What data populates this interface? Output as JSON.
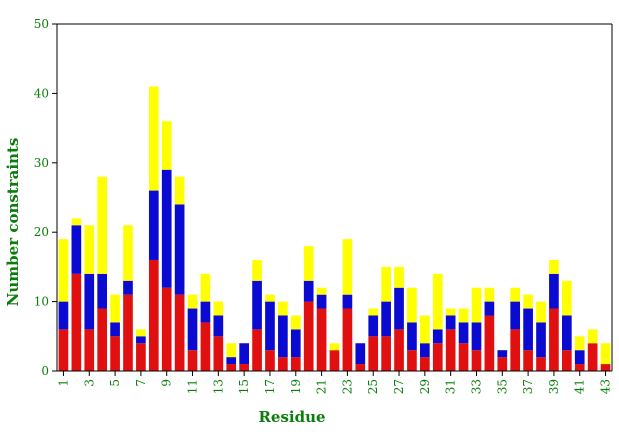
{
  "chart_data": {
    "type": "bar",
    "stacked": true,
    "title": "",
    "xlabel": "Residue",
    "ylabel": "Number constraints",
    "ylim": [
      0,
      50
    ],
    "yticks": [
      0,
      10,
      20,
      30,
      40,
      50
    ],
    "grid": false,
    "legend": "none",
    "categories": [
      1,
      2,
      3,
      4,
      5,
      6,
      7,
      8,
      9,
      10,
      11,
      12,
      13,
      14,
      15,
      16,
      17,
      18,
      19,
      20,
      21,
      22,
      23,
      24,
      25,
      26,
      27,
      28,
      29,
      30,
      31,
      32,
      33,
      34,
      35,
      36,
      37,
      38,
      39,
      40,
      41,
      42,
      43
    ],
    "xtick_labels": [
      "1",
      "3",
      "5",
      "7",
      "9",
      "11",
      "13",
      "15",
      "17",
      "19",
      "21",
      "23",
      "25",
      "27",
      "29",
      "31",
      "33",
      "35",
      "37",
      "39",
      "41",
      "43"
    ],
    "series": [
      {
        "color": "#e01010",
        "values": [
          6,
          14,
          6,
          9,
          5,
          11,
          4,
          16,
          12,
          11,
          3,
          7,
          5,
          1,
          1,
          6,
          3,
          2,
          2,
          10,
          9,
          3,
          9,
          1,
          5,
          5,
          6,
          3,
          2,
          4,
          6,
          4,
          3,
          8,
          2,
          6,
          3,
          2,
          9,
          3,
          1,
          4,
          1
        ]
      },
      {
        "color": "#0a0ad0",
        "values": [
          4,
          7,
          8,
          5,
          2,
          2,
          1,
          10,
          17,
          13,
          6,
          3,
          3,
          1,
          3,
          7,
          7,
          6,
          4,
          3,
          2,
          0,
          2,
          3,
          3,
          5,
          6,
          4,
          2,
          2,
          2,
          3,
          4,
          2,
          1,
          4,
          6,
          5,
          5,
          5,
          2,
          0,
          0
        ]
      },
      {
        "color": "#ffff00",
        "values": [
          9,
          1,
          7,
          14,
          4,
          8,
          1,
          15,
          7,
          4,
          2,
          4,
          2,
          2,
          0,
          3,
          1,
          2,
          2,
          5,
          1,
          1,
          8,
          0,
          1,
          5,
          3,
          5,
          4,
          8,
          1,
          2,
          5,
          2,
          0,
          2,
          2,
          3,
          2,
          5,
          2,
          2,
          3
        ]
      }
    ]
  }
}
